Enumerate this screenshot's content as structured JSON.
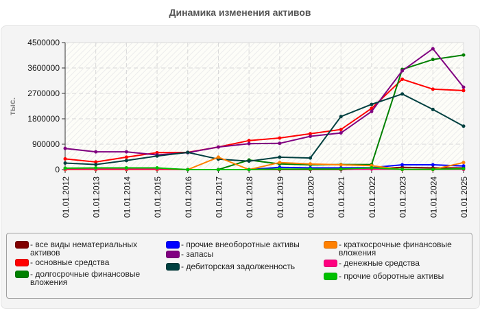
{
  "title": "Динамика изменения активов",
  "chart_data": {
    "type": "line",
    "title": "Динамика изменения активов",
    "xlabel": "",
    "ylabel": "тыс.",
    "ylim": [
      0,
      4500000
    ],
    "yticks": [
      "0",
      "900000",
      "1800000",
      "2700000",
      "3600000",
      "4500000"
    ],
    "grid": true,
    "legend_position": "bottom",
    "categories": [
      "01.01.2012",
      "01.01.2013",
      "01.01.2014",
      "01.01.2015",
      "01.01.2016",
      "01.01.2017",
      "01.01.2018",
      "01.01.2019",
      "01.01.2020",
      "01.01.2021",
      "01.01.2022",
      "01.01.2023",
      "01.01.2024",
      "01.01.2025"
    ],
    "series": [
      {
        "name": "все виды нематериальных активов",
        "color": "#800000",
        "values": [
          0,
          0,
          0,
          0,
          0,
          0,
          0,
          0,
          0,
          0,
          30000,
          80000,
          60000,
          60000
        ]
      },
      {
        "name": "основные средства",
        "color": "#ff0000",
        "values": [
          380000,
          270000,
          440000,
          600000,
          610000,
          800000,
          1030000,
          1120000,
          1270000,
          1420000,
          2170000,
          3200000,
          2850000,
          2800000
        ]
      },
      {
        "name": "долгосрочные финансовые вложения",
        "color": "#008000",
        "values": [
          0,
          0,
          0,
          0,
          0,
          0,
          340000,
          200000,
          170000,
          180000,
          180000,
          3550000,
          3900000,
          4060000
        ]
      },
      {
        "name": "прочие внеоборотные активы",
        "color": "#0000ff",
        "values": [
          0,
          0,
          0,
          0,
          0,
          0,
          0,
          80000,
          60000,
          60000,
          70000,
          170000,
          170000,
          130000
        ]
      },
      {
        "name": "запасы",
        "color": "#800080",
        "values": [
          750000,
          630000,
          630000,
          520000,
          600000,
          800000,
          920000,
          930000,
          1180000,
          1300000,
          2060000,
          3500000,
          4280000,
          2920000
        ]
      },
      {
        "name": "дебиторская задолженность",
        "color": "#004040",
        "values": [
          230000,
          180000,
          320000,
          480000,
          610000,
          370000,
          300000,
          440000,
          410000,
          1880000,
          2310000,
          2680000,
          2130000,
          1540000
        ]
      },
      {
        "name": "краткосрочные финансовые вложения",
        "color": "#ff8000",
        "values": [
          0,
          0,
          0,
          0,
          0,
          440000,
          0,
          250000,
          200000,
          170000,
          140000,
          0,
          0,
          250000
        ]
      },
      {
        "name": "денежные средства",
        "color": "#ff0080",
        "values": [
          20000,
          20000,
          20000,
          20000,
          0,
          0,
          0,
          10000,
          10000,
          10000,
          20000,
          10000,
          10000,
          10000
        ]
      },
      {
        "name": "прочие оборотные активы",
        "color": "#00c000",
        "values": [
          50000,
          60000,
          60000,
          60000,
          0,
          0,
          0,
          20000,
          20000,
          20000,
          60000,
          10000,
          10000,
          30000
        ]
      }
    ]
  },
  "legend": {
    "items": [
      {
        "label": "- все виды нематериальных активов",
        "color": "#800000"
      },
      {
        "label": "- основные средства",
        "color": "#ff0000"
      },
      {
        "label": "- долгосрочные финансовые вложения",
        "color": "#008000"
      },
      {
        "label": "- прочие внеоборотные активы",
        "color": "#0000ff"
      },
      {
        "label": "- запасы",
        "color": "#800080"
      },
      {
        "label": "- дебиторская задолженность",
        "color": "#004040"
      },
      {
        "label": "- краткосрочные финансовые вложения",
        "color": "#ff8000"
      },
      {
        "label": "- денежные средства",
        "color": "#ff0080"
      },
      {
        "label": "- прочие оборотные активы",
        "color": "#00c000"
      }
    ]
  }
}
